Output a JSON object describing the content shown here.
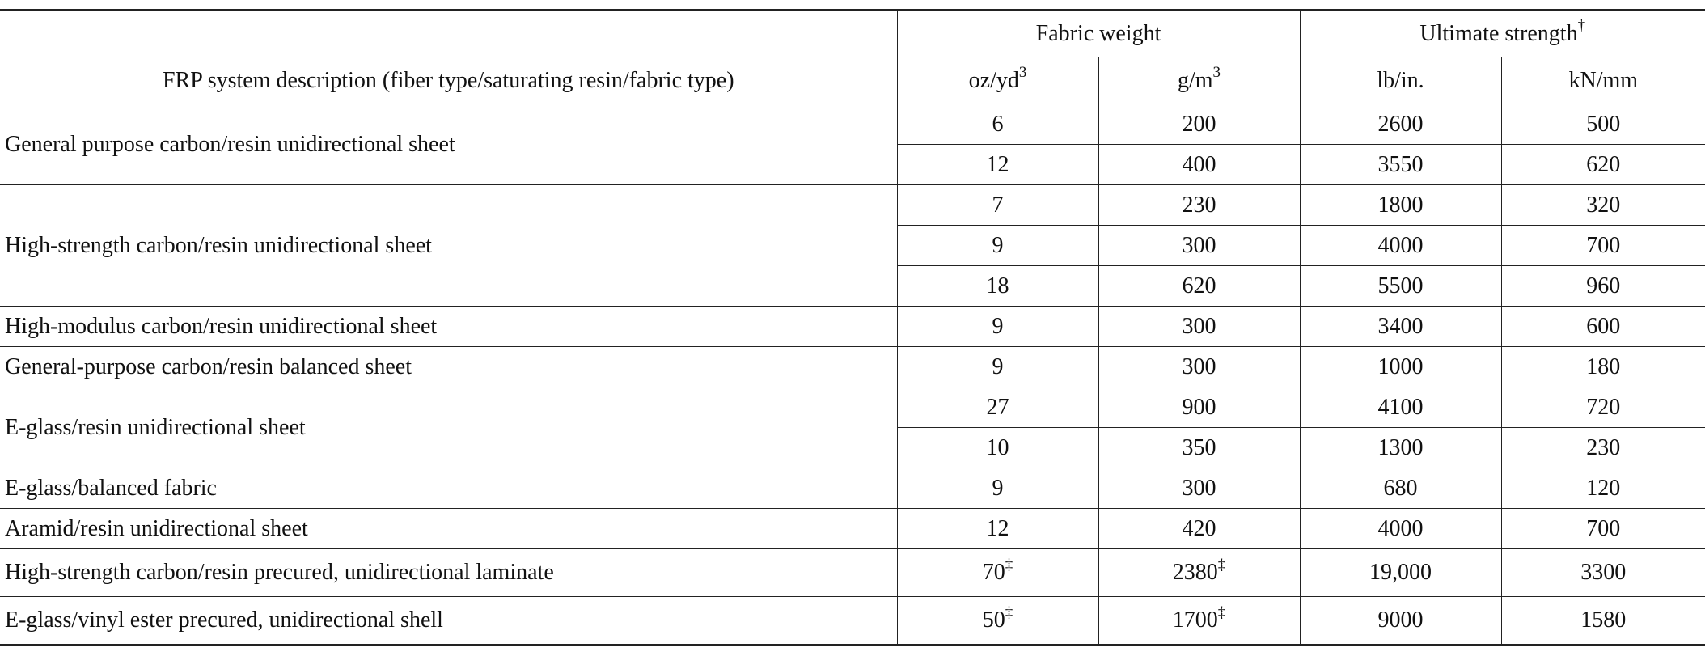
{
  "header": {
    "description": "FRP system description (fiber type/saturating resin/fabric type)",
    "groups": [
      "Fabric weight",
      {
        "text": "Ultimate strength",
        "sup": "†"
      }
    ],
    "units": [
      {
        "text": "oz/yd",
        "sup": "3"
      },
      {
        "text": "g/m",
        "sup": "3"
      },
      "lb/in.",
      "kN/mm"
    ]
  },
  "table": {
    "groups": [
      {
        "description": "General purpose carbon/resin unidirectional sheet",
        "rows": [
          [
            "6",
            "200",
            "2600",
            "500"
          ],
          [
            "12",
            "400",
            "3550",
            "620"
          ]
        ]
      },
      {
        "description": "High-strength carbon/resin unidirectional sheet",
        "rows": [
          [
            "7",
            "230",
            "1800",
            "320"
          ],
          [
            "9",
            "300",
            "4000",
            "700"
          ],
          [
            "18",
            "620",
            "5500",
            "960"
          ]
        ]
      },
      {
        "description": "High-modulus carbon/resin unidirectional sheet",
        "rows": [
          [
            "9",
            "300",
            "3400",
            "600"
          ]
        ]
      },
      {
        "description": "General-purpose carbon/resin balanced sheet",
        "rows": [
          [
            "9",
            "300",
            "1000",
            "180"
          ]
        ]
      },
      {
        "description": "E-glass/resin unidirectional sheet",
        "rows": [
          [
            "27",
            "900",
            "4100",
            "720"
          ],
          [
            "10",
            "350",
            "1300",
            "230"
          ]
        ]
      },
      {
        "description": "E-glass/balanced fabric",
        "rows": [
          [
            "9",
            "300",
            "680",
            "120"
          ]
        ]
      },
      {
        "description": "Aramid/resin unidirectional sheet",
        "rows": [
          [
            "12",
            "420",
            "4000",
            "700"
          ]
        ]
      },
      {
        "description": "High-strength carbon/resin precured, unidirectional laminate",
        "rows": [
          [
            {
              "text": "70",
              "sup": "‡"
            },
            {
              "text": "2380",
              "sup": "‡"
            },
            "19,000",
            "3300"
          ]
        ]
      },
      {
        "description": "E-glass/vinyl ester precured, unidirectional shell",
        "rows": [
          [
            {
              "text": "50",
              "sup": "‡"
            },
            {
              "text": "1700",
              "sup": "‡"
            },
            "9000",
            "1580"
          ]
        ]
      }
    ]
  }
}
